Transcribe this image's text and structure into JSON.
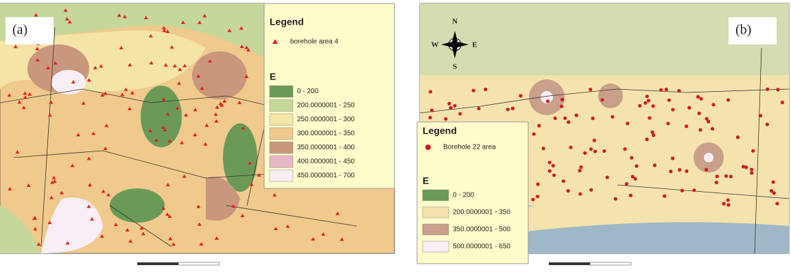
{
  "panel_a": {
    "label": "(a)",
    "legend": {
      "title": "Legend",
      "point_label": "borehole area 4",
      "point_color": "#e0231c",
      "field_title": "E",
      "items": [
        {
          "label": "0 - 200",
          "color": "#6b9a58"
        },
        {
          "label": "200.0000001 - 250",
          "color": "#c5d79a"
        },
        {
          "label": "250.0000001 - 300",
          "color": "#f4e4a6"
        },
        {
          "label": "300.0000001 - 350",
          "color": "#efc98c"
        },
        {
          "label": "350.0000001 - 400",
          "color": "#c9977c"
        },
        {
          "label": "400.0000001 - 450",
          "color": "#e6b6c6"
        },
        {
          "label": "450.0000001 - 700",
          "color": "#f8eef5"
        }
      ]
    }
  },
  "panel_b": {
    "label": "(b)",
    "compass": {
      "n": "N",
      "s": "S",
      "w": "W",
      "e": "E"
    },
    "legend": {
      "title": "Legend",
      "point_label": "Borehole 22 area",
      "point_color": "#d01a1a",
      "field_title": "E",
      "items": [
        {
          "label": "0 - 200",
          "color": "#6b9a58"
        },
        {
          "label": "200.0000001 - 350",
          "color": "#f4e3ad"
        },
        {
          "label": "350.0000001 - 500",
          "color": "#c9a08a"
        },
        {
          "label": "500.0000001 - 650",
          "color": "#f8eef5"
        }
      ]
    }
  }
}
